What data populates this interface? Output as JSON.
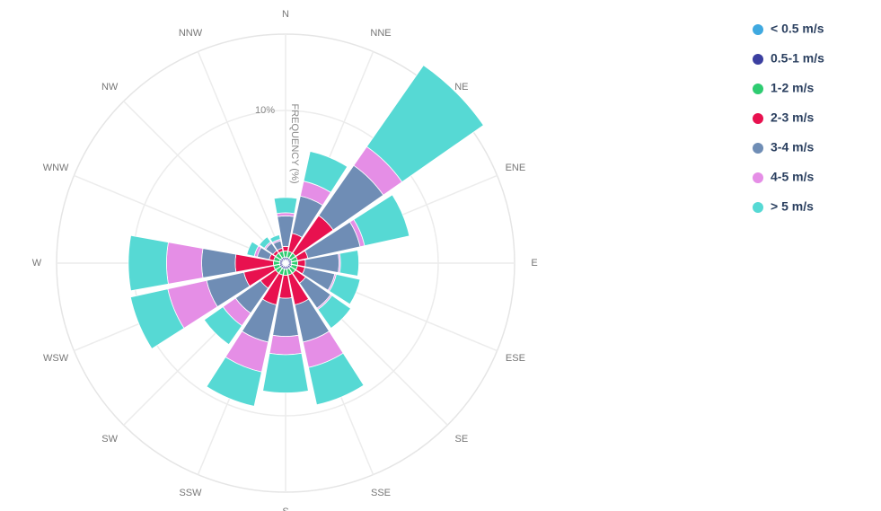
{
  "chart_data": {
    "type": "barpolar",
    "radial_axis_title": "FREQUENCY (%)",
    "categories": [
      "N",
      "NNE",
      "NE",
      "ENE",
      "E",
      "ESE",
      "SE",
      "SSE",
      "S",
      "SSW",
      "SW",
      "WSW",
      "W",
      "WNW",
      "NW",
      "NNW"
    ],
    "rlim": [
      0,
      15
    ],
    "rticks": [
      {
        "value": 10,
        "label": "10%"
      }
    ],
    "grid": true,
    "legend": "top-right",
    "series": [
      {
        "name": "< 0.5 m/s",
        "color": "#3fa9e0",
        "values": [
          0.2,
          0.2,
          0.2,
          0.2,
          0.2,
          0.2,
          0.2,
          0.2,
          0.2,
          0.2,
          0.2,
          0.2,
          0.2,
          0.2,
          0.2,
          0.2
        ]
      },
      {
        "name": "0.5-1 m/s",
        "color": "#3b3fa0",
        "values": [
          0.2,
          0.2,
          0.2,
          0.2,
          0.2,
          0.2,
          0.2,
          0.2,
          0.2,
          0.2,
          0.2,
          0.2,
          0.2,
          0.2,
          0.2,
          0.2
        ]
      },
      {
        "name": "1-2 m/s",
        "color": "#2ecc71",
        "values": [
          0.4,
          0.4,
          0.4,
          0.4,
          0.4,
          0.4,
          0.4,
          0.4,
          0.4,
          0.4,
          0.4,
          0.4,
          0.4,
          0.4,
          0.4,
          0.4
        ]
      },
      {
        "name": "2-3 m/s",
        "color": "#e8114f",
        "values": [
          0.3,
          1.2,
          3,
          0.7,
          0.5,
          0.5,
          0.8,
          2,
          1.5,
          2,
          1.2,
          2,
          2.5,
          0.3,
          0.2,
          0.2
        ]
      },
      {
        "name": "3-4 m/s",
        "color": "#6f8db5",
        "values": [
          2,
          2.5,
          4,
          3.5,
          2.2,
          2,
          2,
          2.5,
          2.5,
          2.5,
          2,
          2.5,
          2.2,
          0.8,
          0.6,
          0.5
        ]
      },
      {
        "name": "4-5 m/s",
        "color": "#e58ee6",
        "values": [
          0.2,
          1,
          1.5,
          0.3,
          0.1,
          0.1,
          0.1,
          1.7,
          1.2,
          2,
          1,
          2.6,
          2.3,
          0.2,
          0.1,
          0.1
        ]
      },
      {
        "name": "> 5 m/s",
        "color": "#56d9d4",
        "values": [
          1,
          2,
          6.5,
          3,
          1.2,
          1.6,
          1.5,
          2.5,
          2.5,
          2.3,
          1.5,
          2.5,
          2.5,
          0.5,
          0.4,
          0.3
        ]
      }
    ]
  }
}
